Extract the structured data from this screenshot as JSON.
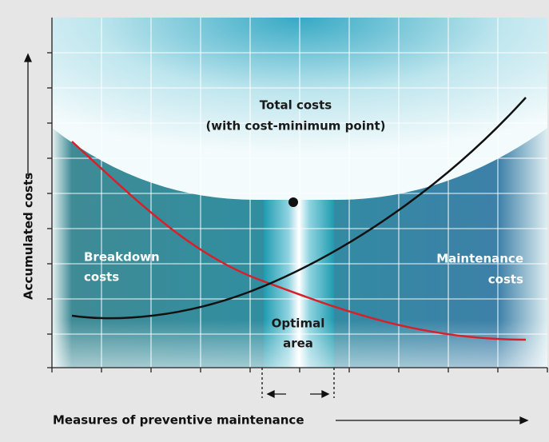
{
  "title": {
    "line1": "Total costs",
    "line2": "(with cost-minimum point)"
  },
  "labels": {
    "breakdown": {
      "line1": "Breakdown",
      "line2": "costs"
    },
    "maintenance": {
      "line1": "Maintenance",
      "line2": "costs"
    },
    "optimal": {
      "line1": "Optimal",
      "line2": "area"
    }
  },
  "axes": {
    "y": "Accumulated costs",
    "x": "Measures of preventive maintenance"
  }
}
